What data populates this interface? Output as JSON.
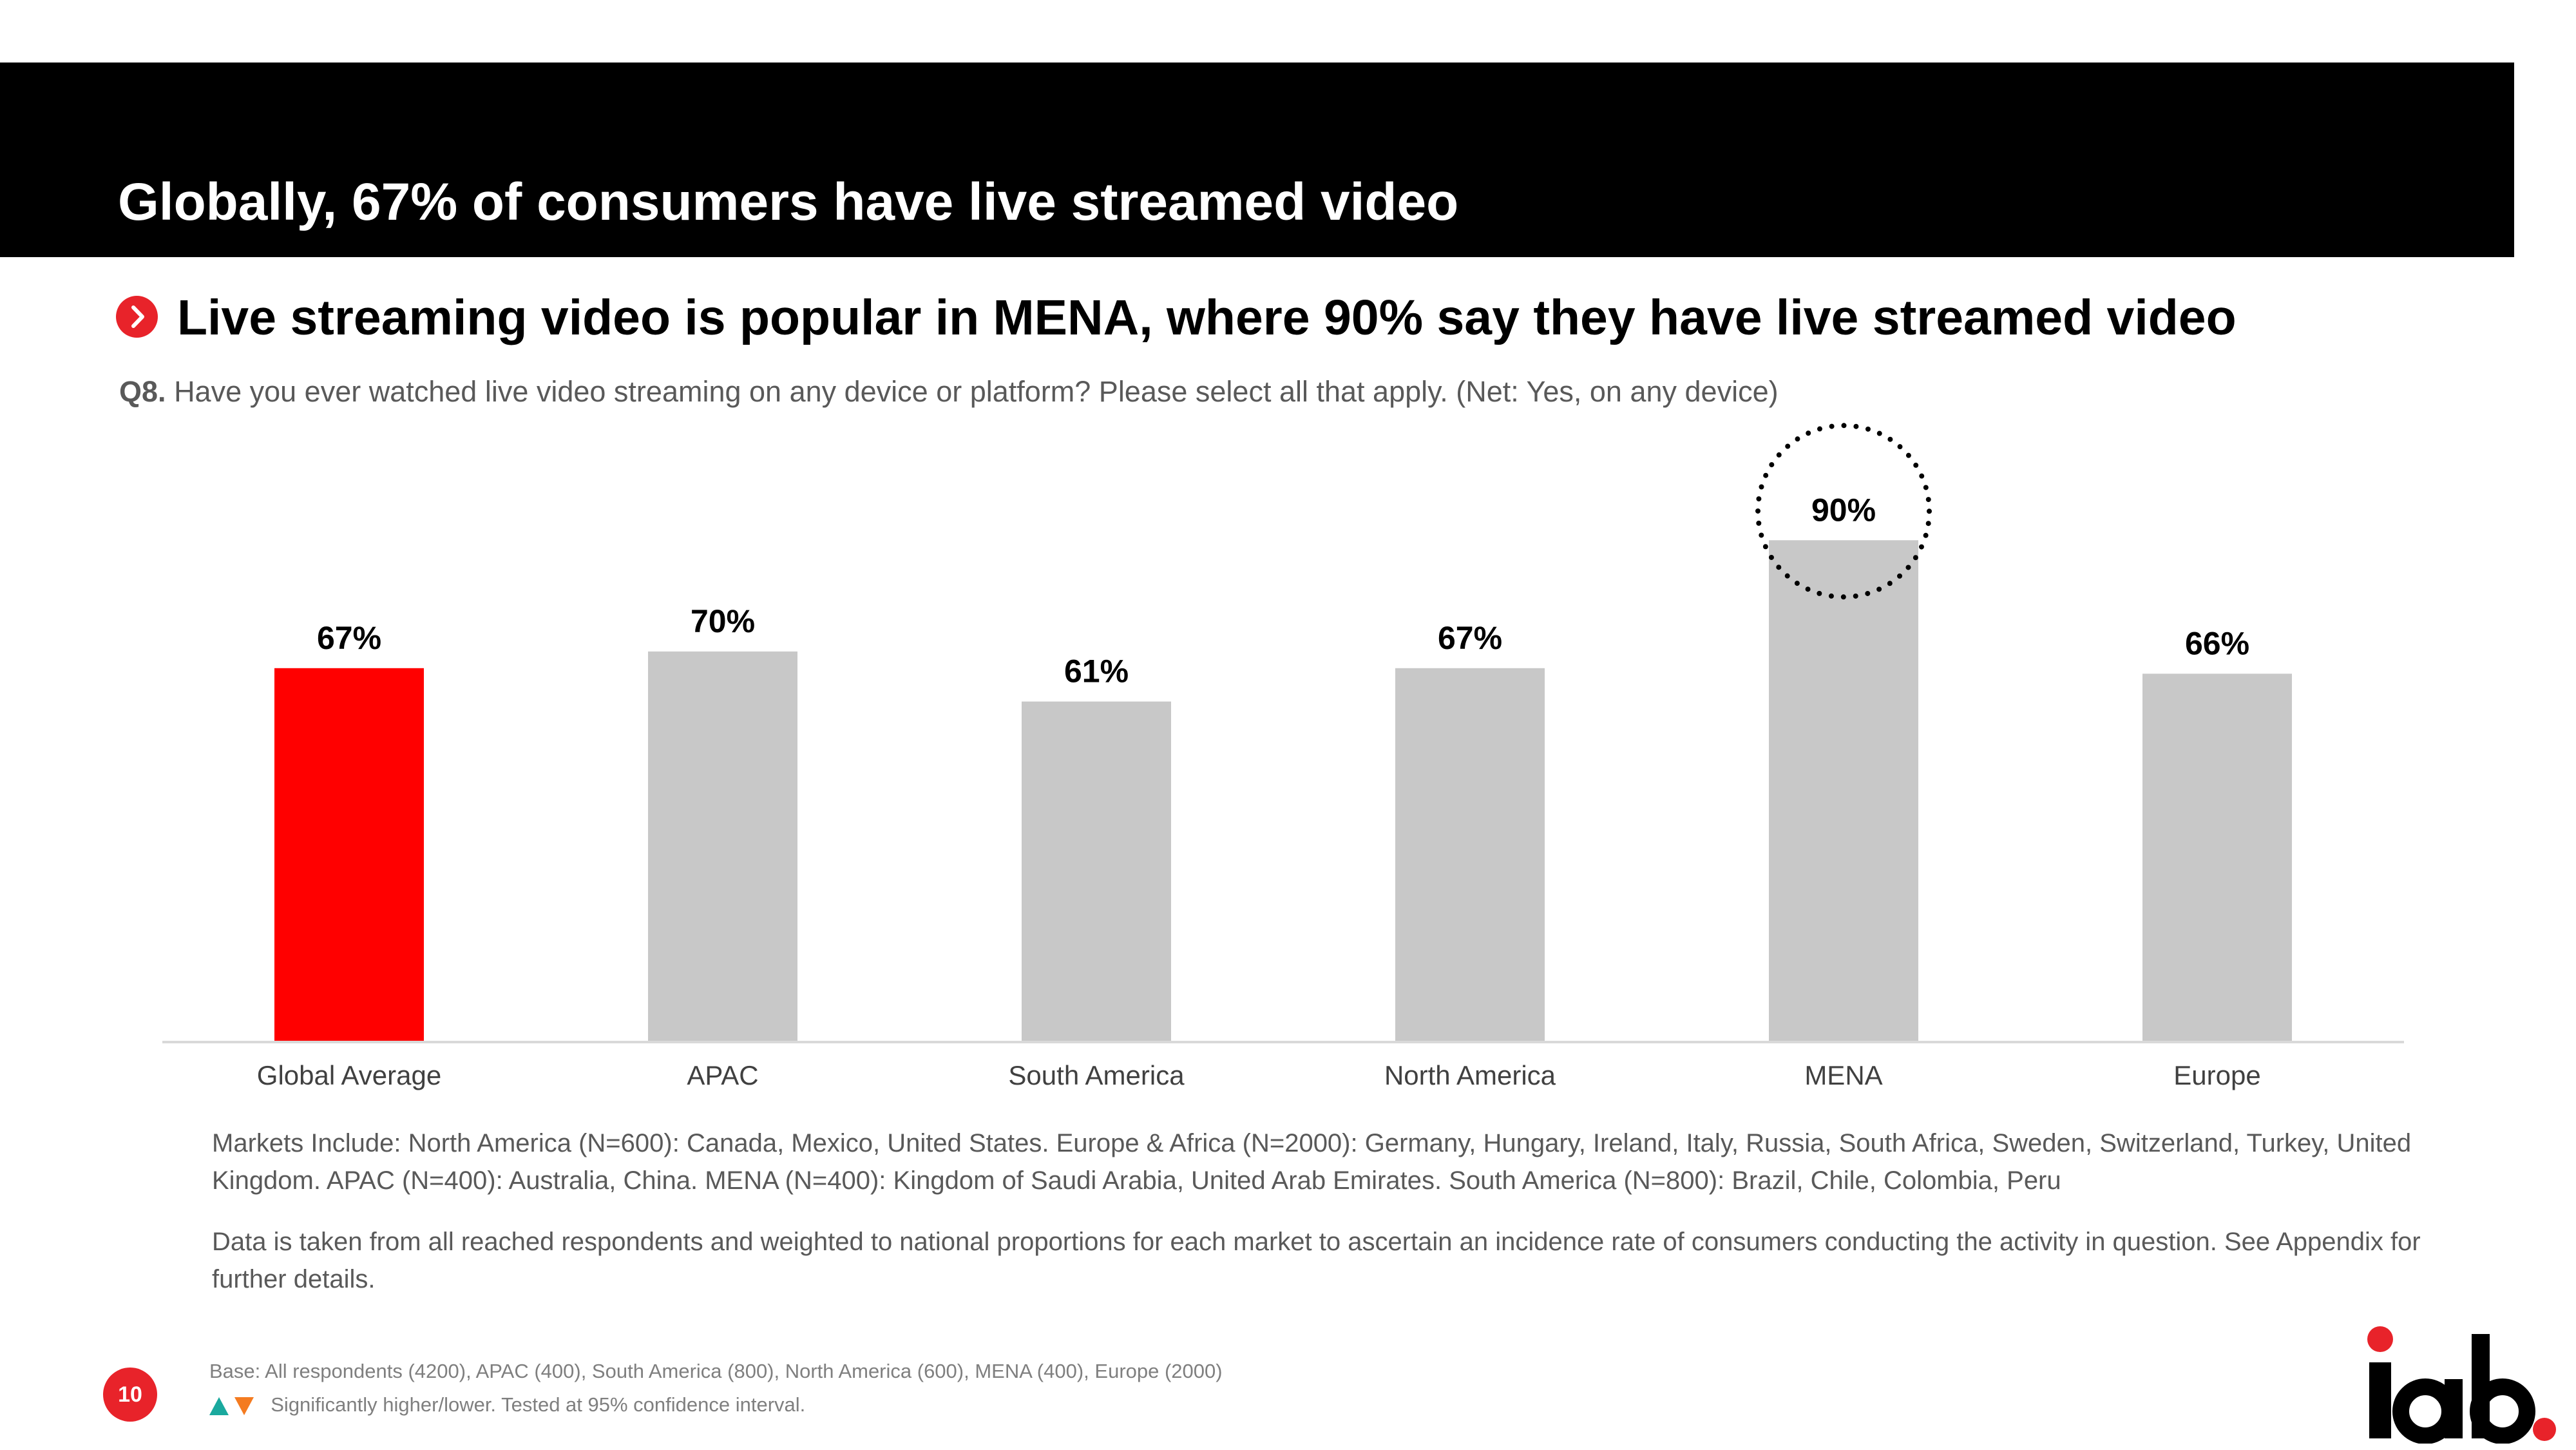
{
  "slide": {
    "title": "Globally, 67% of consumers have live streamed video",
    "subtitle": "Live streaming video is popular in MENA, where 90% say they have live streamed video",
    "question_prefix": "Q8.",
    "question_text": "Have you ever watched live video streaming on any device or platform? Please select all that apply. (Net: Yes, on any device)",
    "note_markets": "Markets Include: North America (N=600): Canada, Mexico, United States. Europe & Africa (N=2000): Germany, Hungary, Ireland, Italy, Russia, South Africa, Sweden, Switzerland, Turkey, United Kingdom. APAC (N=400): Australia, China. MENA (N=400): Kingdom of Saudi Arabia, United Arab Emirates. South America (N=800): Brazil, Chile, Colombia, Peru",
    "note_data": "Data is taken from all reached respondents and weighted to national proportions for each market to ascertain an incidence rate of consumers conducting the activity in question. See Appendix for further details.",
    "base": "Base: All respondents (4200), APAC (400), South America (800), North America (600), MENA (400), Europe (2000)",
    "significance": "Significantly higher/lower. Tested at 95% confidence interval.",
    "page_number": "10",
    "logo_text": "iab."
  },
  "colors": {
    "highlight_bar": "#ff0000",
    "bar": "#c8c8c8",
    "accent_red": "#e8232a",
    "teal": "#1aa99e",
    "orange": "#f47b20"
  },
  "chart_data": {
    "type": "bar",
    "categories": [
      "Global Average",
      "APAC",
      "South America",
      "North America",
      "MENA",
      "Europe"
    ],
    "values": [
      67,
      70,
      61,
      67,
      90,
      66
    ],
    "data_labels": [
      "67%",
      "70%",
      "61%",
      "67%",
      "90%",
      "66%"
    ],
    "highlight_index": 0,
    "circled_index": 4,
    "ylim": [
      0,
      100
    ],
    "grid": false,
    "legend": "none"
  }
}
